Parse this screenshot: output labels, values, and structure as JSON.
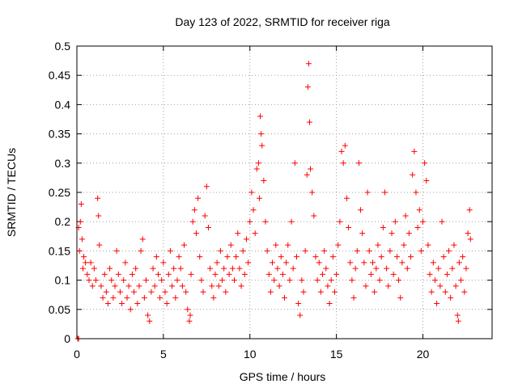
{
  "chart_data": {
    "type": "scatter",
    "title": "Day 123 of 2022, SRMTID for receiver riga",
    "xlabel": "GPS time / hours",
    "ylabel": "SRMTID / TECUs",
    "xlim": [
      0,
      24
    ],
    "ylim": [
      0,
      0.5
    ],
    "xticks": [
      0,
      5,
      10,
      15,
      20
    ],
    "xtick_labels": [
      "0",
      "5",
      "10",
      "15",
      "20"
    ],
    "yticks": [
      0,
      0.05,
      0.1,
      0.15,
      0.2,
      0.25,
      0.3,
      0.35,
      0.4,
      0.45,
      0.5
    ],
    "ytick_labels": [
      "0",
      "0.05",
      "0.1",
      "0.15",
      "0.2",
      "0.25",
      "0.3",
      "0.35",
      "0.4",
      "0.45",
      "0.5"
    ],
    "grid": true,
    "legend": "none",
    "marker": "+",
    "color": "#ff0000",
    "series": [
      {
        "name": "SRMTID",
        "points": [
          [
            0.05,
            0.0
          ],
          [
            0.1,
            0.0
          ],
          [
            0.1,
            0.19
          ],
          [
            0.15,
            0.15
          ],
          [
            0.2,
            0.2
          ],
          [
            0.25,
            0.23
          ],
          [
            0.3,
            0.17
          ],
          [
            0.35,
            0.12
          ],
          [
            0.4,
            0.14
          ],
          [
            0.5,
            0.13
          ],
          [
            0.6,
            0.11
          ],
          [
            0.7,
            0.1
          ],
          [
            0.8,
            0.13
          ],
          [
            0.9,
            0.09
          ],
          [
            1.0,
            0.12
          ],
          [
            1.1,
            0.1
          ],
          [
            1.2,
            0.24
          ],
          [
            1.25,
            0.21
          ],
          [
            1.3,
            0.16
          ],
          [
            1.4,
            0.09
          ],
          [
            1.5,
            0.07
          ],
          [
            1.6,
            0.11
          ],
          [
            1.7,
            0.08
          ],
          [
            1.8,
            0.06
          ],
          [
            1.9,
            0.12
          ],
          [
            2.0,
            0.1
          ],
          [
            2.1,
            0.07
          ],
          [
            2.2,
            0.09
          ],
          [
            2.3,
            0.15
          ],
          [
            2.4,
            0.11
          ],
          [
            2.5,
            0.08
          ],
          [
            2.6,
            0.06
          ],
          [
            2.7,
            0.1
          ],
          [
            2.8,
            0.13
          ],
          [
            2.9,
            0.07
          ],
          [
            3.0,
            0.09
          ],
          [
            3.1,
            0.05
          ],
          [
            3.2,
            0.11
          ],
          [
            3.3,
            0.08
          ],
          [
            3.4,
            0.12
          ],
          [
            3.5,
            0.06
          ],
          [
            3.6,
            0.09
          ],
          [
            3.7,
            0.15
          ],
          [
            3.8,
            0.17
          ],
          [
            3.9,
            0.07
          ],
          [
            4.0,
            0.1
          ],
          [
            4.1,
            0.04
          ],
          [
            4.2,
            0.03
          ],
          [
            4.3,
            0.08
          ],
          [
            4.4,
            0.12
          ],
          [
            4.5,
            0.09
          ],
          [
            4.6,
            0.14
          ],
          [
            4.7,
            0.11
          ],
          [
            4.8,
            0.07
          ],
          [
            4.9,
            0.1
          ],
          [
            5.0,
            0.13
          ],
          [
            5.1,
            0.08
          ],
          [
            5.2,
            0.06
          ],
          [
            5.3,
            0.11
          ],
          [
            5.4,
            0.15
          ],
          [
            5.5,
            0.09
          ],
          [
            5.6,
            0.12
          ],
          [
            5.7,
            0.07
          ],
          [
            5.8,
            0.1
          ],
          [
            5.9,
            0.14
          ],
          [
            6.0,
            0.12
          ],
          [
            6.1,
            0.09
          ],
          [
            6.2,
            0.16
          ],
          [
            6.3,
            0.08
          ],
          [
            6.4,
            0.05
          ],
          [
            6.5,
            0.03
          ],
          [
            6.55,
            0.04
          ],
          [
            6.6,
            0.11
          ],
          [
            6.7,
            0.2
          ],
          [
            6.8,
            0.22
          ],
          [
            6.9,
            0.18
          ],
          [
            7.0,
            0.24
          ],
          [
            7.1,
            0.14
          ],
          [
            7.2,
            0.1
          ],
          [
            7.3,
            0.08
          ],
          [
            7.4,
            0.21
          ],
          [
            7.5,
            0.26
          ],
          [
            7.6,
            0.19
          ],
          [
            7.7,
            0.12
          ],
          [
            7.8,
            0.09
          ],
          [
            7.9,
            0.07
          ],
          [
            8.0,
            0.11
          ],
          [
            8.1,
            0.13
          ],
          [
            8.2,
            0.09
          ],
          [
            8.3,
            0.15
          ],
          [
            8.4,
            0.1
          ],
          [
            8.5,
            0.12
          ],
          [
            8.6,
            0.08
          ],
          [
            8.7,
            0.14
          ],
          [
            8.8,
            0.11
          ],
          [
            8.9,
            0.16
          ],
          [
            9.0,
            0.12
          ],
          [
            9.1,
            0.1
          ],
          [
            9.2,
            0.14
          ],
          [
            9.3,
            0.18
          ],
          [
            9.4,
            0.12
          ],
          [
            9.5,
            0.09
          ],
          [
            9.6,
            0.15
          ],
          [
            9.7,
            0.11
          ],
          [
            9.8,
            0.17
          ],
          [
            9.9,
            0.13
          ],
          [
            10.0,
            0.2
          ],
          [
            10.1,
            0.25
          ],
          [
            10.2,
            0.22
          ],
          [
            10.3,
            0.18
          ],
          [
            10.4,
            0.29
          ],
          [
            10.5,
            0.3
          ],
          [
            10.55,
            0.24
          ],
          [
            10.6,
            0.38
          ],
          [
            10.65,
            0.35
          ],
          [
            10.7,
            0.33
          ],
          [
            10.8,
            0.27
          ],
          [
            10.9,
            0.2
          ],
          [
            11.0,
            0.15
          ],
          [
            11.1,
            0.11
          ],
          [
            11.2,
            0.08
          ],
          [
            11.3,
            0.13
          ],
          [
            11.4,
            0.1
          ],
          [
            11.5,
            0.16
          ],
          [
            11.6,
            0.12
          ],
          [
            11.7,
            0.09
          ],
          [
            11.8,
            0.14
          ],
          [
            11.9,
            0.11
          ],
          [
            12.0,
            0.07
          ],
          [
            12.1,
            0.13
          ],
          [
            12.2,
            0.16
          ],
          [
            12.3,
            0.1
          ],
          [
            12.4,
            0.2
          ],
          [
            12.5,
            0.12
          ],
          [
            12.6,
            0.3
          ],
          [
            12.7,
            0.14
          ],
          [
            12.8,
            0.06
          ],
          [
            12.9,
            0.04
          ],
          [
            13.0,
            0.1
          ],
          [
            13.1,
            0.08
          ],
          [
            13.2,
            0.15
          ],
          [
            13.3,
            0.28
          ],
          [
            13.35,
            0.43
          ],
          [
            13.4,
            0.47
          ],
          [
            13.45,
            0.37
          ],
          [
            13.5,
            0.29
          ],
          [
            13.6,
            0.25
          ],
          [
            13.7,
            0.21
          ],
          [
            13.8,
            0.14
          ],
          [
            13.9,
            0.1
          ],
          [
            14.0,
            0.13
          ],
          [
            14.1,
            0.08
          ],
          [
            14.2,
            0.11
          ],
          [
            14.3,
            0.15
          ],
          [
            14.4,
            0.12
          ],
          [
            14.5,
            0.09
          ],
          [
            14.6,
            0.06
          ],
          [
            14.7,
            0.1
          ],
          [
            14.8,
            0.14
          ],
          [
            14.9,
            0.08
          ],
          [
            15.0,
            0.11
          ],
          [
            15.1,
            0.16
          ],
          [
            15.2,
            0.2
          ],
          [
            15.3,
            0.32
          ],
          [
            15.4,
            0.3
          ],
          [
            15.5,
            0.33
          ],
          [
            15.6,
            0.24
          ],
          [
            15.7,
            0.19
          ],
          [
            15.8,
            0.13
          ],
          [
            15.9,
            0.1
          ],
          [
            16.0,
            0.07
          ],
          [
            16.1,
            0.12
          ],
          [
            16.2,
            0.15
          ],
          [
            16.3,
            0.3
          ],
          [
            16.4,
            0.22
          ],
          [
            16.5,
            0.18
          ],
          [
            16.6,
            0.13
          ],
          [
            16.7,
            0.09
          ],
          [
            16.8,
            0.25
          ],
          [
            16.9,
            0.15
          ],
          [
            17.0,
            0.11
          ],
          [
            17.1,
            0.13
          ],
          [
            17.2,
            0.08
          ],
          [
            17.3,
            0.12
          ],
          [
            17.4,
            0.16
          ],
          [
            17.5,
            0.1
          ],
          [
            17.6,
            0.14
          ],
          [
            17.7,
            0.19
          ],
          [
            17.8,
            0.25
          ],
          [
            17.9,
            0.12
          ],
          [
            18.0,
            0.09
          ],
          [
            18.1,
            0.15
          ],
          [
            18.2,
            0.18
          ],
          [
            18.3,
            0.11
          ],
          [
            18.4,
            0.2
          ],
          [
            18.5,
            0.14
          ],
          [
            18.6,
            0.1
          ],
          [
            18.7,
            0.07
          ],
          [
            18.8,
            0.13
          ],
          [
            18.9,
            0.16
          ],
          [
            19.0,
            0.21
          ],
          [
            19.1,
            0.12
          ],
          [
            19.2,
            0.18
          ],
          [
            19.3,
            0.14
          ],
          [
            19.4,
            0.28
          ],
          [
            19.5,
            0.32
          ],
          [
            19.6,
            0.25
          ],
          [
            19.7,
            0.19
          ],
          [
            19.8,
            0.22
          ],
          [
            19.9,
            0.15
          ],
          [
            20.0,
            0.2
          ],
          [
            20.1,
            0.3
          ],
          [
            20.2,
            0.27
          ],
          [
            20.3,
            0.16
          ],
          [
            20.4,
            0.11
          ],
          [
            20.5,
            0.08
          ],
          [
            20.6,
            0.13
          ],
          [
            20.7,
            0.1
          ],
          [
            20.8,
            0.06
          ],
          [
            20.9,
            0.12
          ],
          [
            21.0,
            0.09
          ],
          [
            21.1,
            0.2
          ],
          [
            21.2,
            0.14
          ],
          [
            21.3,
            0.08
          ],
          [
            21.4,
            0.11
          ],
          [
            21.5,
            0.15
          ],
          [
            21.6,
            0.07
          ],
          [
            21.7,
            0.12
          ],
          [
            21.8,
            0.16
          ],
          [
            21.9,
            0.09
          ],
          [
            22.0,
            0.04
          ],
          [
            22.05,
            0.03
          ],
          [
            22.1,
            0.13
          ],
          [
            22.2,
            0.1
          ],
          [
            22.3,
            0.14
          ],
          [
            22.4,
            0.08
          ],
          [
            22.5,
            0.12
          ],
          [
            22.6,
            0.18
          ],
          [
            22.7,
            0.22
          ],
          [
            22.75,
            0.17
          ]
        ]
      }
    ]
  }
}
